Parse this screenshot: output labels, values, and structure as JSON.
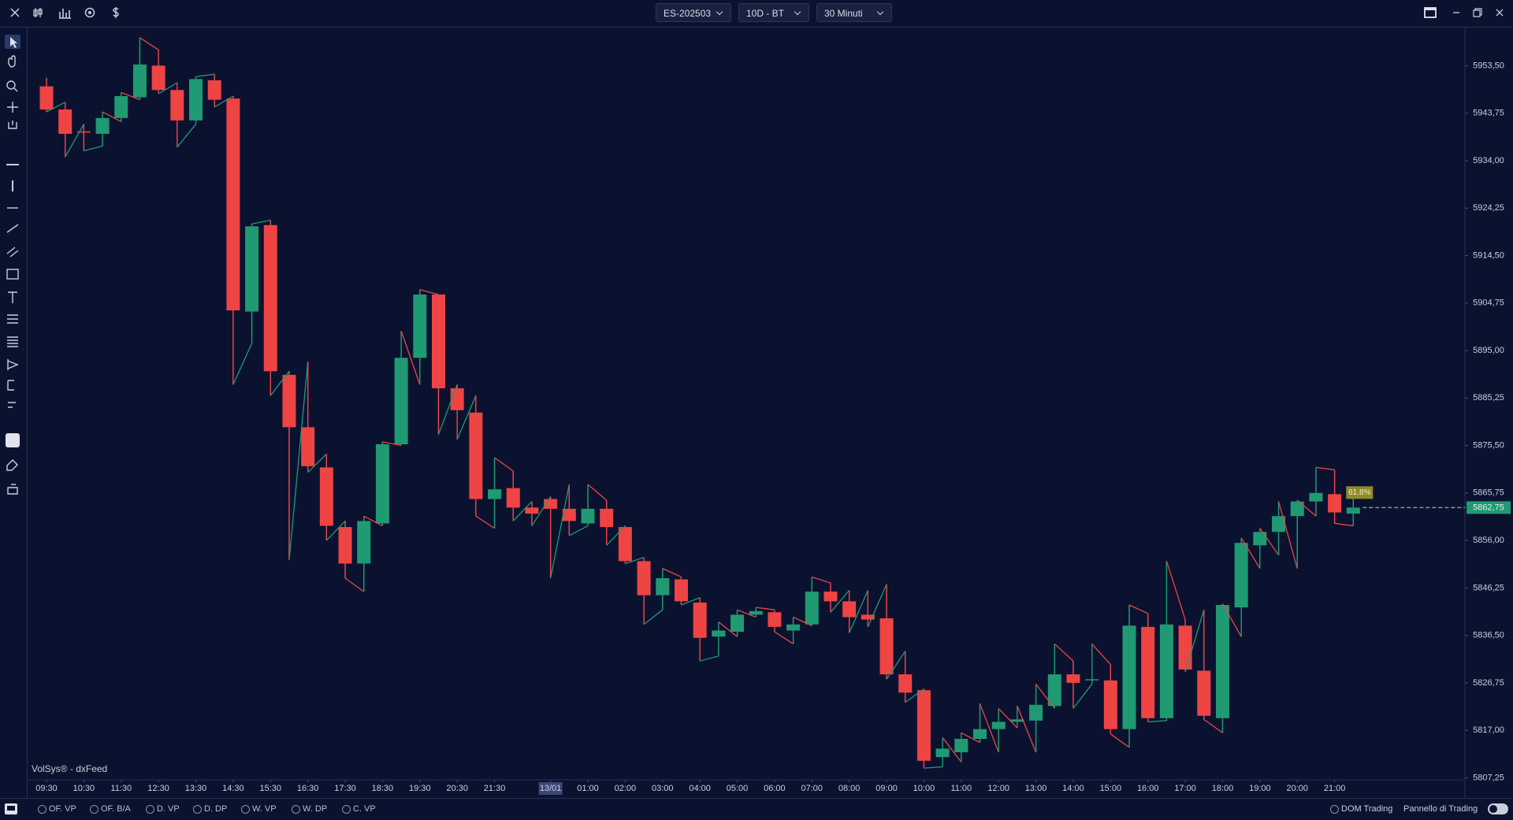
{
  "toolbar": {
    "symbol": "ES-202503",
    "range": "10D - BT",
    "timeframe": "30 Minuti"
  },
  "watermark": "VolSys® - dxFeed",
  "indicators": [
    "OF. VP",
    "OF. B/A",
    "D. VP",
    "D. DP",
    "W. VP",
    "W. DP",
    "C. VP"
  ],
  "footer_right": [
    "DOM Trading",
    "Pannello di Trading"
  ],
  "chart_data": {
    "type": "candlestick",
    "up_color": "#1f9a72",
    "down_color": "#ef4444",
    "categories": [
      "09:30",
      null,
      "10:30",
      null,
      "11:30",
      null,
      "12:30",
      null,
      "13:30",
      null,
      "14:30",
      null,
      "15:30",
      null,
      "16:30",
      null,
      "17:30",
      null,
      "18:30",
      null,
      "19:30",
      null,
      "20:30",
      null,
      "21:30",
      null,
      null,
      "13/01",
      null,
      "01:00",
      null,
      "02:00",
      null,
      "03:00",
      null,
      "04:00",
      null,
      "05:00",
      null,
      "06:00",
      null,
      "07:00",
      null,
      "08:00",
      null,
      "09:00",
      null,
      "10:00",
      null,
      "11:00",
      null,
      "12:00",
      null,
      "13:00",
      null,
      "14:00",
      null,
      "15:00",
      null,
      "16:00",
      null,
      "17:00",
      null,
      "18:00",
      null,
      "19:00",
      null,
      "20:00",
      null,
      "21:00",
      null
    ],
    "open": [
      5949.25,
      5944.5,
      5940,
      5939.5,
      5942.75,
      5947,
      5953.5,
      5948.5,
      5942.25,
      5950.5,
      5946.75,
      5903,
      5920.75,
      5890,
      5879.25,
      5871,
      5858.75,
      5851.25,
      5859.5,
      5875.75,
      5893.5,
      5906.5,
      5887.25,
      5882.25,
      5864.5,
      5866.75,
      5862.75,
      5864.5,
      5862.5,
      5859.5,
      5862.5,
      5858.75,
      5851.75,
      5844.75,
      5848,
      5843.25,
      5836.25,
      5837.25,
      5840.75,
      5841.25,
      5837.5,
      5838.75,
      5845.5,
      5843.5,
      5840.75,
      5840,
      5828.5,
      5825.25,
      5811.5,
      5812.5,
      5815.25,
      5817.25,
      5818.75,
      5819,
      5822,
      5828.5,
      5827.25,
      5827.25,
      5817.25,
      5838.25,
      5819.5,
      5838.5,
      5829.25,
      5819.5,
      5842.25,
      5855,
      5857.75,
      5861,
      5864,
      5865.5,
      5861.5
    ],
    "high": [
      5951,
      5946,
      5941.5,
      5944,
      5948,
      5959.25,
      5956.75,
      5950,
      5951.25,
      5951.75,
      5947.25,
      5921,
      5921.75,
      5890.75,
      5892.75,
      5873.75,
      5860,
      5861,
      5876.25,
      5899,
      5907.5,
      5906.5,
      5888,
      5885.75,
      5873,
      5870.25,
      5864,
      5865,
      5867.5,
      5867.5,
      5864.25,
      5859,
      5852.5,
      5850.25,
      5848.5,
      5844.25,
      5839.25,
      5841.75,
      5842.25,
      5841.75,
      5840.25,
      5848.5,
      5847.25,
      5845.75,
      5845.75,
      5847,
      5833.25,
      5825.5,
      5815.5,
      5816.5,
      5822.5,
      5821.5,
      5822,
      5826.5,
      5834.75,
      5831.25,
      5834.75,
      5830.5,
      5842.75,
      5841,
      5851.75,
      5839.75,
      5841.75,
      5843,
      5856.5,
      5858.5,
      5864,
      5864.25,
      5871,
      5870.5,
      5865.5
    ],
    "low": [
      5944,
      5934.75,
      5936,
      5937,
      5942,
      5946.5,
      5947.75,
      5936.75,
      5941.5,
      5945,
      5888,
      5896.5,
      5885.75,
      5852,
      5870,
      5856,
      5848.25,
      5845.5,
      5859,
      5875.5,
      5888,
      5877.75,
      5876.75,
      5861,
      5858.5,
      5860,
      5859,
      5848.25,
      5857,
      5859,
      5855,
      5851.25,
      5838.75,
      5841.75,
      5842.75,
      5831.25,
      5832.25,
      5836.25,
      5840.25,
      5837.25,
      5834.75,
      5838.5,
      5841.25,
      5837,
      5838.25,
      5827.5,
      5822.75,
      5809.25,
      5809.5,
      5810.5,
      5814.5,
      5812.5,
      5817.5,
      5812.5,
      5821.5,
      5821.5,
      5826.5,
      5816.25,
      5813.5,
      5818.75,
      5819,
      5829,
      5819.25,
      5816.5,
      5836.25,
      5850.25,
      5853,
      5850.25,
      5861,
      5859.5,
      5859
    ],
    "close": [
      5944.5,
      5939.5,
      5939.75,
      5942.75,
      5947.25,
      5953.75,
      5948.5,
      5942.25,
      5950.75,
      5946.5,
      5903.25,
      5920.5,
      5890.75,
      5879.25,
      5871.25,
      5859,
      5851.25,
      5860,
      5875.75,
      5893.5,
      5906.5,
      5887.25,
      5882.75,
      5864.5,
      5866.5,
      5862.75,
      5861.5,
      5862.5,
      5860,
      5862.5,
      5858.75,
      5851.75,
      5844.75,
      5848.25,
      5843.5,
      5836,
      5837.5,
      5840.75,
      5841.5,
      5838.25,
      5838.75,
      5845.5,
      5843.5,
      5840.25,
      5839.75,
      5828.5,
      5824.75,
      5810.75,
      5813.25,
      5815.25,
      5817.25,
      5818.75,
      5819.25,
      5822.25,
      5828.5,
      5826.75,
      5827.5,
      5817.25,
      5838.5,
      5819.5,
      5838.75,
      5829.5,
      5820,
      5842.75,
      5855.5,
      5857.75,
      5861,
      5864,
      5865.75,
      5861.75,
      5862.75
    ],
    "ylim": [
      5807,
      5961
    ],
    "yticks": [
      {
        "value": 5953.5,
        "label": "5953,50"
      },
      {
        "value": 5943.75,
        "label": "5943,75"
      },
      {
        "value": 5934,
        "label": "5934,00"
      },
      {
        "value": 5924.25,
        "label": "5924,25"
      },
      {
        "value": 5914.5,
        "label": "5914,50"
      },
      {
        "value": 5904.75,
        "label": "5904,75"
      },
      {
        "value": 5895,
        "label": "5895,00"
      },
      {
        "value": 5885.25,
        "label": "5885,25"
      },
      {
        "value": 5875.5,
        "label": "5875,50"
      },
      {
        "value": 5865.75,
        "label": "5865,75"
      },
      {
        "value": 5856,
        "label": "5856,00"
      },
      {
        "value": 5846.25,
        "label": "5846,25"
      },
      {
        "value": 5836.5,
        "label": "5836,50"
      },
      {
        "value": 5826.75,
        "label": "5826,75"
      },
      {
        "value": 5817,
        "label": "5817,00"
      },
      {
        "value": 5807.25,
        "label": "5807,25"
      }
    ],
    "last_price": {
      "value": 5862.75,
      "label": "5862,75"
    },
    "annotation": "61.8%"
  }
}
